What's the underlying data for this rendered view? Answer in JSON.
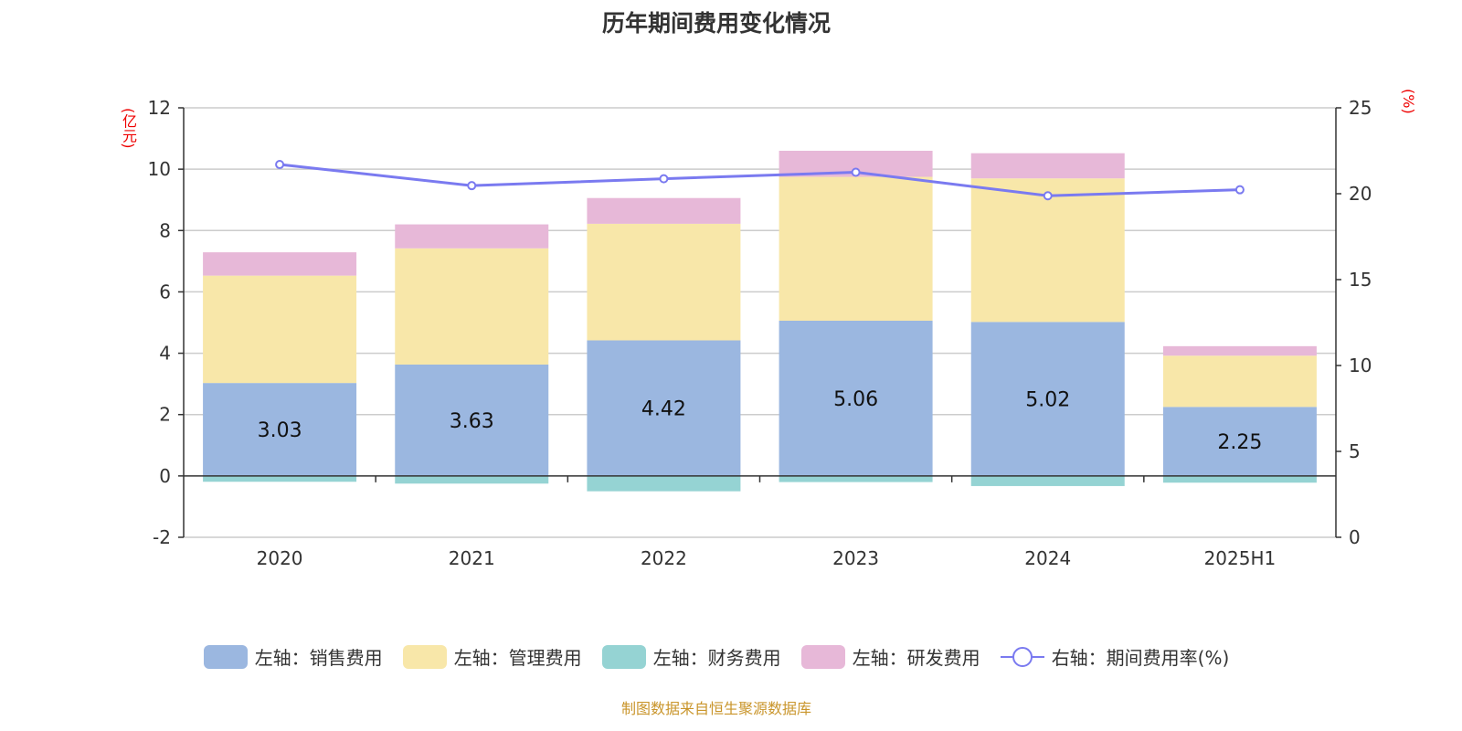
{
  "chart_data": {
    "type": "bar",
    "title": "历年期间费用变化情况",
    "categories": [
      "2020",
      "2021",
      "2022",
      "2023",
      "2024",
      "2025H1"
    ],
    "left_axis": {
      "unit_label": "(亿元)",
      "range": [
        -2,
        12
      ],
      "ticks": [
        -2,
        0,
        2,
        4,
        6,
        8,
        10,
        12
      ]
    },
    "right_axis": {
      "unit_label": "(%)",
      "range": [
        0,
        25
      ],
      "ticks": [
        0,
        5,
        10,
        15,
        20,
        25
      ]
    },
    "grid": true,
    "legend_position": "bottom",
    "series": [
      {
        "name": "左轴：销售费用",
        "type": "bar",
        "stack": true,
        "axis": "left",
        "color": "#9bb7e0",
        "values": [
          3.03,
          3.63,
          4.42,
          5.06,
          5.02,
          2.25
        ],
        "labels": [
          "3.03",
          "3.63",
          "4.42",
          "5.06",
          "5.02",
          "2.25"
        ]
      },
      {
        "name": "左轴：管理费用",
        "type": "bar",
        "stack": true,
        "axis": "left",
        "color": "#f8e7a9",
        "values": [
          3.5,
          3.79,
          3.8,
          4.69,
          4.68,
          1.67
        ]
      },
      {
        "name": "左轴：财务费用",
        "type": "bar",
        "stack": true,
        "axis": "left",
        "color": "#95d3d3",
        "values": [
          -0.19,
          -0.25,
          -0.5,
          -0.2,
          -0.33,
          -0.22
        ]
      },
      {
        "name": "左轴：研发费用",
        "type": "bar",
        "stack": true,
        "axis": "left",
        "color": "#e7b8d8",
        "values": [
          0.76,
          0.78,
          0.84,
          0.85,
          0.82,
          0.31
        ]
      },
      {
        "name": "右轴：期间费用率(%)",
        "type": "line",
        "axis": "right",
        "color": "#7a7af0",
        "values": [
          21.7,
          20.47,
          20.87,
          21.25,
          19.88,
          20.23
        ]
      }
    ]
  },
  "source": "制图数据来自恒生聚源数据库"
}
